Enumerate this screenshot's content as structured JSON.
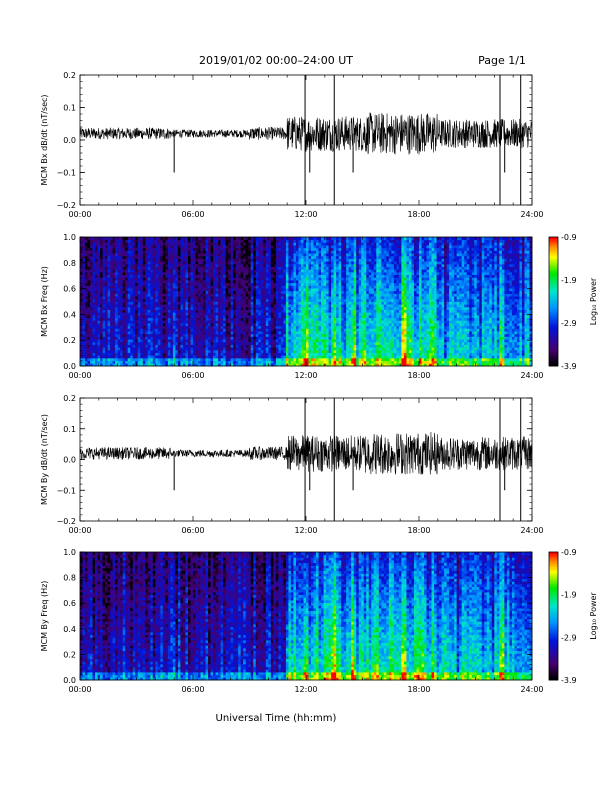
{
  "header": {
    "title": "2019/01/02  00:00–24:00 UT",
    "page": "Page 1/1"
  },
  "xaxis_title": "Universal Time (hh:mm)",
  "chart_data": [
    {
      "type": "line",
      "panel": "bx-timeseries",
      "ylabel": "MCM Bx dB/dt (nT/sec)",
      "xlim": [
        0,
        24
      ],
      "ylim": [
        -0.2,
        0.2
      ],
      "x_tick_labels": [
        "00:00",
        "06:00",
        "12:00",
        "18:00",
        "24:00"
      ],
      "y_tick_labels": [
        "0.2",
        "0.1",
        "0.0",
        "−0.1",
        "−0.2"
      ],
      "y_tick_values": [
        0.2,
        0.1,
        0.0,
        -0.1,
        -0.2
      ],
      "series_color": "#000000",
      "spikes_hours": [
        5.0,
        11.95,
        12.2,
        13.5,
        14.5,
        22.3,
        22.55,
        23.4
      ],
      "envelope": [
        {
          "from": 0,
          "to": 4.8,
          "amp": 0.018
        },
        {
          "from": 4.8,
          "to": 9.0,
          "amp": 0.012
        },
        {
          "from": 9.0,
          "to": 11.0,
          "amp": 0.02
        },
        {
          "from": 11.0,
          "to": 15.0,
          "amp": 0.055
        },
        {
          "from": 15.0,
          "to": 19.0,
          "amp": 0.065
        },
        {
          "from": 19.0,
          "to": 24.0,
          "amp": 0.045
        }
      ]
    },
    {
      "type": "heatmap",
      "panel": "bx-spectrogram",
      "ylabel": "MCM Bx Freq (Hz)",
      "xlim": [
        0,
        24
      ],
      "ylim": [
        0.0,
        1.0
      ],
      "x_tick_labels": [
        "00:00",
        "06:00",
        "12:00",
        "18:00",
        "24:00"
      ],
      "y_tick_labels": [
        "1.0",
        "0.8",
        "0.6",
        "0.4",
        "0.2",
        "0.0"
      ],
      "y_tick_values": [
        1.0,
        0.8,
        0.6,
        0.4,
        0.2,
        0.0
      ],
      "colorbar": {
        "label": "Log₁₀ Power",
        "range": [
          -3.9,
          -0.9
        ],
        "tick_labels": [
          "-0.9",
          "-1.9",
          "-2.9",
          "-3.9"
        ]
      },
      "activity": [
        {
          "from": 0,
          "to": 11.0,
          "level": 0.25
        },
        {
          "from": 11.0,
          "to": 15.0,
          "level": 0.6
        },
        {
          "from": 15.0,
          "to": 19.0,
          "level": 0.65
        },
        {
          "from": 19.0,
          "to": 24.0,
          "level": 0.5
        }
      ],
      "hot_lines_hours": [
        5.0,
        12.0,
        13.5,
        14.5,
        17.2,
        22.4
      ]
    },
    {
      "type": "line",
      "panel": "by-timeseries",
      "ylabel": "MCM By dB/dt (nT/sec)",
      "xlim": [
        0,
        24
      ],
      "ylim": [
        -0.2,
        0.2
      ],
      "x_tick_labels": [
        "00:00",
        "06:00",
        "12:00",
        "18:00",
        "24:00"
      ],
      "y_tick_labels": [
        "0.2",
        "0.1",
        "0.0",
        "−0.1",
        "−0.2"
      ],
      "y_tick_values": [
        0.2,
        0.1,
        0.0,
        -0.1,
        -0.2
      ],
      "series_color": "#000000",
      "spikes_hours": [
        5.0,
        11.95,
        12.2,
        13.5,
        14.5,
        22.3,
        22.55,
        23.4
      ],
      "envelope": [
        {
          "from": 0,
          "to": 4.8,
          "amp": 0.02
        },
        {
          "from": 4.8,
          "to": 9.0,
          "amp": 0.012
        },
        {
          "from": 9.0,
          "to": 11.0,
          "amp": 0.022
        },
        {
          "from": 11.0,
          "to": 15.0,
          "amp": 0.06
        },
        {
          "from": 15.0,
          "to": 19.0,
          "amp": 0.07
        },
        {
          "from": 19.0,
          "to": 24.0,
          "amp": 0.055
        }
      ]
    },
    {
      "type": "heatmap",
      "panel": "by-spectrogram",
      "ylabel": "MCM By Freq (Hz)",
      "xlim": [
        0,
        24
      ],
      "ylim": [
        0.0,
        1.0
      ],
      "x_tick_labels": [
        "00:00",
        "06:00",
        "12:00",
        "18:00",
        "24:00"
      ],
      "y_tick_labels": [
        "1.0",
        "0.8",
        "0.6",
        "0.4",
        "0.2",
        "0.0"
      ],
      "y_tick_values": [
        1.0,
        0.8,
        0.6,
        0.4,
        0.2,
        0.0
      ],
      "colorbar": {
        "label": "Log₁₀ Power",
        "range": [
          -3.9,
          -0.9
        ],
        "tick_labels": [
          "-0.9",
          "-1.9",
          "-2.9",
          "-3.9"
        ]
      },
      "activity": [
        {
          "from": 0,
          "to": 11.0,
          "level": 0.27
        },
        {
          "from": 11.0,
          "to": 15.0,
          "level": 0.62
        },
        {
          "from": 15.0,
          "to": 19.0,
          "level": 0.66
        },
        {
          "from": 19.0,
          "to": 24.0,
          "level": 0.52
        }
      ],
      "hot_lines_hours": [
        5.0,
        12.0,
        13.5,
        14.5,
        17.2,
        22.4
      ]
    }
  ]
}
